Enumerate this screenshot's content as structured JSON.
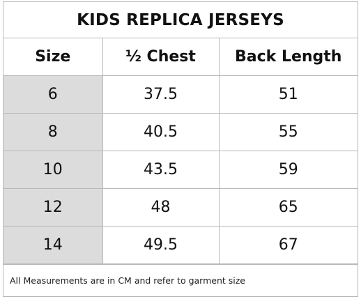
{
  "title": "KIDS REPLICA JERSEYS",
  "columns": [
    "Size",
    "½ Chest",
    "Back Length"
  ],
  "rows": [
    {
      "size": "6",
      "half_chest": "37.5",
      "back_length": "51"
    },
    {
      "size": "8",
      "half_chest": "40.5",
      "back_length": "55"
    },
    {
      "size": "10",
      "half_chest": "43.5",
      "back_length": "59"
    },
    {
      "size": "12",
      "half_chest": "48",
      "back_length": "65"
    },
    {
      "size": "14",
      "half_chest": "49.5",
      "back_length": "67"
    }
  ],
  "footnote": "All Measurements are in CM and refer to garment size",
  "colors": {
    "size_column_fill": "#dcdcdc",
    "border": "#b9b9b9",
    "text": "#111111"
  }
}
